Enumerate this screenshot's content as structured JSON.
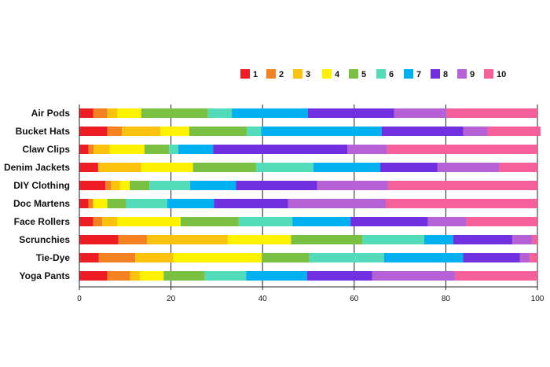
{
  "chart_data": {
    "type": "bar",
    "orientation": "horizontal",
    "stacked": true,
    "title": "",
    "xlabel": "",
    "ylabel": "",
    "xlim": [
      0,
      100
    ],
    "xticks": [
      0,
      20,
      40,
      60,
      80,
      100
    ],
    "grid": "vertical",
    "legend_position": "top-right",
    "categories": [
      "Air Pods",
      "Bucket Hats",
      "Claw Clips",
      "Denim Jackets",
      "DIY Clothing",
      "Doc Martens",
      "Face Rollers",
      "Scrunchies",
      "Tie-Dye",
      "Yoga Pants"
    ],
    "series": [
      {
        "name": "1",
        "color": "#ee1c25",
        "values": [
          3.0,
          6.1,
          2.0,
          4.1,
          5.7,
          2.0,
          3.0,
          8.5,
          4.2,
          6.1
        ]
      },
      {
        "name": "2",
        "color": "#f58220",
        "values": [
          3.1,
          3.2,
          1.1,
          0.0,
          1.2,
          1.0,
          2.0,
          6.3,
          8.0,
          5.0
        ]
      },
      {
        "name": "3",
        "color": "#fcc20e",
        "values": [
          2.2,
          8.4,
          3.5,
          9.4,
          2.0,
          0.0,
          3.3,
          17.6,
          8.3,
          2.1
        ]
      },
      {
        "name": "4",
        "color": "#fff200",
        "values": [
          5.2,
          6.3,
          7.6,
          11.3,
          2.1,
          3.1,
          13.8,
          13.8,
          19.3,
          5.2
        ]
      },
      {
        "name": "5",
        "color": "#7ac143",
        "values": [
          14.6,
          12.6,
          5.4,
          13.8,
          4.3,
          4.1,
          12.7,
          15.6,
          10.4,
          9.0
        ]
      },
      {
        "name": "6",
        "color": "#53dcb9",
        "values": [
          5.2,
          3.1,
          2.0,
          12.5,
          8.9,
          9.0,
          11.7,
          13.5,
          16.3,
          9.0
        ]
      },
      {
        "name": "7",
        "color": "#00b0f0",
        "values": [
          16.6,
          26.3,
          7.6,
          14.6,
          10.0,
          10.2,
          12.7,
          6.3,
          17.3,
          13.3
        ]
      },
      {
        "name": "8",
        "color": "#7030e0",
        "values": [
          18.8,
          17.8,
          29.3,
          12.5,
          17.7,
          16.2,
          16.9,
          12.9,
          12.4,
          14.2
        ]
      },
      {
        "name": "9",
        "color": "#b761d6",
        "values": [
          11.5,
          5.3,
          8.7,
          13.5,
          15.5,
          21.3,
          8.4,
          4.4,
          2.1,
          18.2
        ]
      },
      {
        "name": "10",
        "color": "#f5609a",
        "values": [
          19.8,
          11.6,
          32.8,
          8.3,
          32.6,
          33.1,
          15.5,
          1.1,
          1.7,
          17.9
        ]
      }
    ]
  }
}
